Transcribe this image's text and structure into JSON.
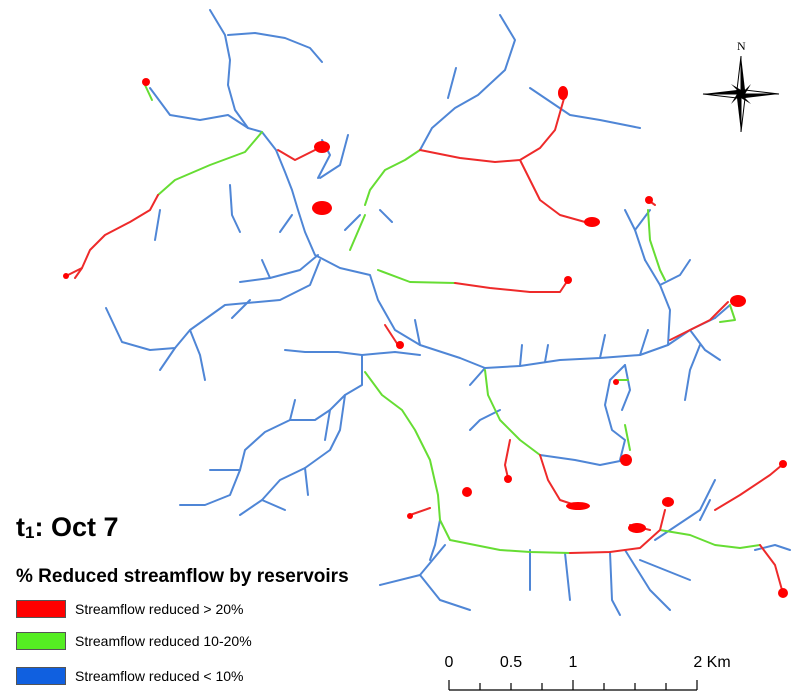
{
  "title": {
    "prefix": "t",
    "subscript": "1",
    "suffix": ": Oct 7"
  },
  "legend": {
    "heading": "% Reduced streamflow by reservoirs",
    "items": [
      {
        "label": "Streamflow reduced > 20%",
        "color": "#ff0000"
      },
      {
        "label": "Streamflow reduced 10-20%",
        "color": "#55ee22"
      },
      {
        "label": "Streamflow reduced < 10%",
        "color": "#1060e0"
      }
    ]
  },
  "north_arrow": {
    "label": "N",
    "icon": "compass-rose-icon"
  },
  "scale_bar": {
    "ticks": [
      "0",
      "0.5",
      "1",
      "2 Km"
    ]
  },
  "colors": {
    "high": "#ff2020",
    "medium": "#66dd33",
    "low": "#4f86d6"
  }
}
